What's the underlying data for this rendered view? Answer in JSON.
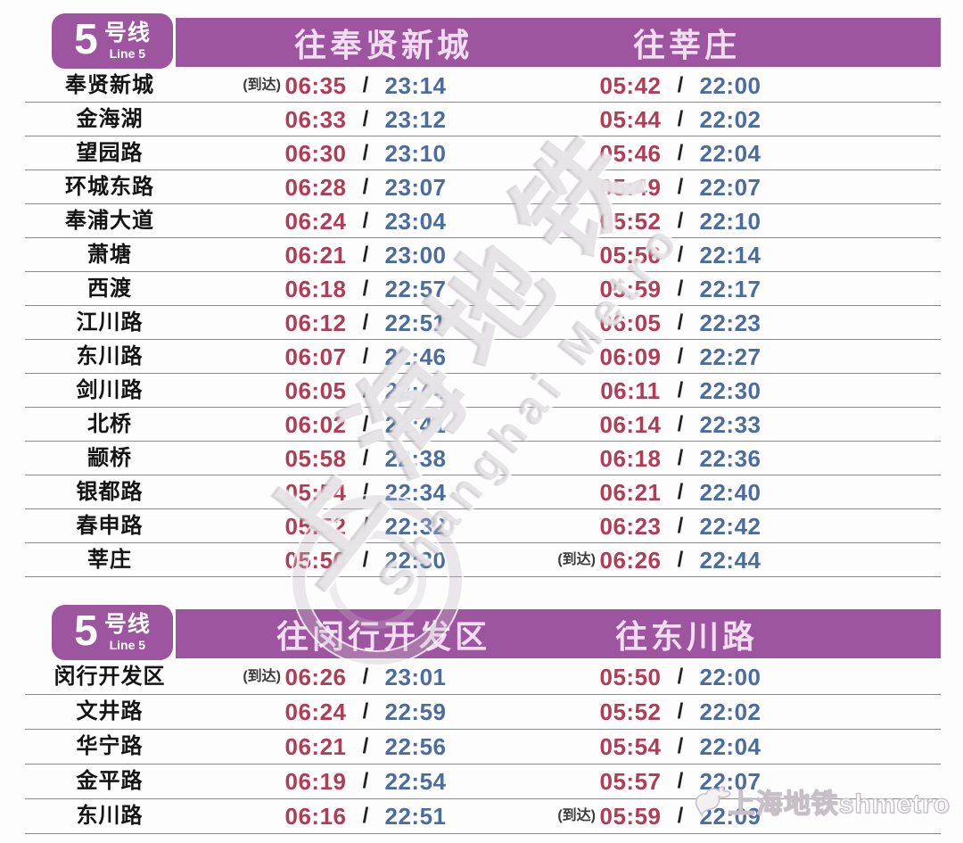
{
  "slash": "/",
  "arrive_label": "(到达)",
  "line_badge": {
    "number": "5",
    "name": "号线",
    "subtitle": "Line 5"
  },
  "colors": {
    "purple": "#9e55a0",
    "red": "#b23c55",
    "blue": "#4a6c9e",
    "line-gray": "#8a8a8a"
  },
  "watermark": {
    "cn": "上海地铁",
    "en": "Shanghai Metro"
  },
  "footer_watermark": {
    "text": "上海地铁shmetro"
  },
  "tables": [
    {
      "header_left": "往奉贤新城",
      "header_right": "往莘庄",
      "rows": [
        {
          "station": "奉贤新城",
          "l_arr": "(到达)",
          "l_first": "06:35",
          "l_last": "23:14",
          "r_arr": "",
          "r_first": "05:42",
          "r_last": "22:00"
        },
        {
          "station": "金海湖",
          "l_arr": "",
          "l_first": "06:33",
          "l_last": "23:12",
          "r_arr": "",
          "r_first": "05:44",
          "r_last": "22:02"
        },
        {
          "station": "望园路",
          "l_arr": "",
          "l_first": "06:30",
          "l_last": "23:10",
          "r_arr": "",
          "r_first": "05:46",
          "r_last": "22:04"
        },
        {
          "station": "环城东路",
          "l_arr": "",
          "l_first": "06:28",
          "l_last": "23:07",
          "r_arr": "",
          "r_first": "05:49",
          "r_last": "22:07"
        },
        {
          "station": "奉浦大道",
          "l_arr": "",
          "l_first": "06:24",
          "l_last": "23:04",
          "r_arr": "",
          "r_first": "05:52",
          "r_last": "22:10"
        },
        {
          "station": "萧塘",
          "l_arr": "",
          "l_first": "06:21",
          "l_last": "23:00",
          "r_arr": "",
          "r_first": "05:56",
          "r_last": "22:14"
        },
        {
          "station": "西渡",
          "l_arr": "",
          "l_first": "06:18",
          "l_last": "22:57",
          "r_arr": "",
          "r_first": "05:59",
          "r_last": "22:17"
        },
        {
          "station": "江川路",
          "l_arr": "",
          "l_first": "06:12",
          "l_last": "22:51",
          "r_arr": "",
          "r_first": "06:05",
          "r_last": "22:23"
        },
        {
          "station": "东川路",
          "l_arr": "",
          "l_first": "06:07",
          "l_last": "22:46",
          "r_arr": "",
          "r_first": "06:09",
          "r_last": "22:27"
        },
        {
          "station": "剑川路",
          "l_arr": "",
          "l_first": "06:05",
          "l_last": "22:44",
          "r_arr": "",
          "r_first": "06:11",
          "r_last": "22:30"
        },
        {
          "station": "北桥",
          "l_arr": "",
          "l_first": "06:02",
          "l_last": "22:41",
          "r_arr": "",
          "r_first": "06:14",
          "r_last": "22:33"
        },
        {
          "station": "颛桥",
          "l_arr": "",
          "l_first": "05:58",
          "l_last": "22:38",
          "r_arr": "",
          "r_first": "06:18",
          "r_last": "22:36"
        },
        {
          "station": "银都路",
          "l_arr": "",
          "l_first": "05:54",
          "l_last": "22:34",
          "r_arr": "",
          "r_first": "06:21",
          "r_last": "22:40"
        },
        {
          "station": "春申路",
          "l_arr": "",
          "l_first": "05:52",
          "l_last": "22:32",
          "r_arr": "",
          "r_first": "06:23",
          "r_last": "22:42"
        },
        {
          "station": "莘庄",
          "l_arr": "",
          "l_first": "05:50",
          "l_last": "22:30",
          "r_arr": "(到达)",
          "r_first": "06:26",
          "r_last": "22:44"
        }
      ]
    },
    {
      "header_left": "往闵行开发区",
      "header_right": "往东川路",
      "rows": [
        {
          "station": "闵行开发区",
          "l_arr": "(到达)",
          "l_first": "06:26",
          "l_last": "23:01",
          "r_arr": "",
          "r_first": "05:50",
          "r_last": "22:00"
        },
        {
          "station": "文井路",
          "l_arr": "",
          "l_first": "06:24",
          "l_last": "22:59",
          "r_arr": "",
          "r_first": "05:52",
          "r_last": "22:02"
        },
        {
          "station": "华宁路",
          "l_arr": "",
          "l_first": "06:21",
          "l_last": "22:56",
          "r_arr": "",
          "r_first": "05:54",
          "r_last": "22:04"
        },
        {
          "station": "金平路",
          "l_arr": "",
          "l_first": "06:19",
          "l_last": "22:54",
          "r_arr": "",
          "r_first": "05:57",
          "r_last": "22:07"
        },
        {
          "station": "东川路",
          "l_arr": "",
          "l_first": "06:16",
          "l_last": "22:51",
          "r_arr": "(到达)",
          "r_first": "05:59",
          "r_last": "22:09"
        }
      ]
    }
  ]
}
